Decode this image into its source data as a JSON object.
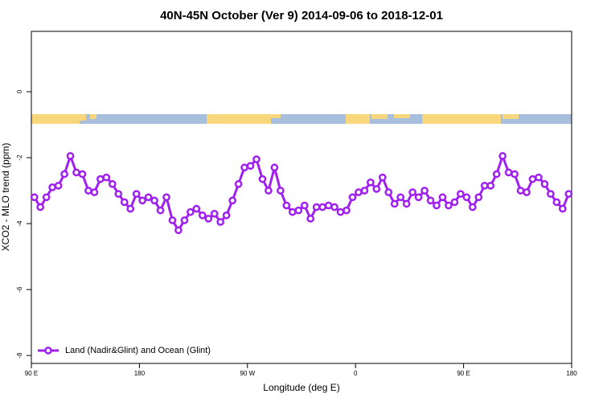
{
  "chart_data": {
    "type": "line",
    "title": "40N-45N October (Ver 9)   2014-09-06 to 2018-12-01",
    "xlabel": "Longitude (deg E)",
    "ylabel": "XCO2 - MLO trend (ppm)",
    "xlim": [
      90,
      540
    ],
    "ylim": [
      -8.24,
      1.83
    ],
    "xticks": [
      {
        "value": 90,
        "label": "90 E"
      },
      180,
      {
        "value": 270,
        "label": "90 W"
      },
      {
        "value": 360,
        "label": "0"
      },
      {
        "value": 450,
        "label": "90 E"
      },
      {
        "value": 540,
        "label": "180"
      }
    ],
    "yticks": [
      0,
      -2,
      -4,
      -6,
      -8
    ],
    "legend": "bottom-left",
    "x": [
      92.5,
      97.5,
      102.5,
      107.5,
      112.5,
      117.5,
      122.5,
      127.5,
      132.5,
      137.5,
      142.5,
      147.5,
      152.5,
      157.5,
      162.5,
      167.5,
      172.5,
      177.5,
      182.5,
      187.5,
      192.5,
      197.5,
      202.5,
      207.5,
      212.5,
      217.5,
      222.5,
      227.5,
      232.5,
      237.5,
      242.5,
      247.5,
      252.5,
      257.5,
      262.5,
      267.5,
      272.5,
      277.5,
      282.5,
      287.5,
      292.5,
      297.5,
      302.5,
      307.5,
      312.5,
      317.5,
      322.5,
      327.5,
      332.5,
      337.5,
      342.5,
      347.5,
      352.5,
      357.5,
      362.5,
      367.5,
      372.5,
      377.5,
      382.5,
      387.5,
      392.5,
      397.5,
      402.5,
      407.5,
      412.5,
      417.5,
      422.5,
      427.5,
      432.5,
      437.5,
      442.5,
      447.5,
      452.5,
      457.5,
      462.5,
      467.5,
      472.5,
      477.5,
      482.5,
      487.5,
      492.5,
      497.5,
      502.5,
      507.5,
      512.5,
      517.5,
      522.5,
      527.5,
      532.5,
      537.5
    ],
    "series": [
      {
        "name": "Land (Nadir&Glint) and Ocean (Glint)",
        "color": "#a020f0",
        "values": [
          -3.2,
          -3.5,
          -3.2,
          -2.9,
          -2.85,
          -2.5,
          -1.95,
          -2.45,
          -2.5,
          -3.0,
          -3.05,
          -2.65,
          -2.6,
          -2.8,
          -3.1,
          -3.35,
          -3.55,
          -3.1,
          -3.3,
          -3.2,
          -3.3,
          -3.6,
          -3.2,
          -3.9,
          -4.2,
          -3.9,
          -3.65,
          -3.55,
          -3.75,
          -3.85,
          -3.7,
          -3.95,
          -3.75,
          -3.3,
          -2.8,
          -2.3,
          -2.25,
          -2.05,
          -2.65,
          -3.0,
          -2.3,
          -3.0,
          -3.45,
          -3.65,
          -3.6,
          -3.45,
          -3.85,
          -3.5,
          -3.5,
          -3.45,
          -3.5,
          -3.65,
          -3.6,
          -3.2,
          -3.05,
          -3.0,
          -2.75,
          -2.95,
          -2.6,
          -3.05,
          -3.4,
          -3.2,
          -3.4,
          -3.05,
          -3.2,
          -3.0,
          -3.3,
          -3.45,
          -3.2,
          -3.45,
          -3.35,
          -3.1,
          -3.2,
          -3.5,
          -3.2,
          -2.85,
          -2.85,
          -2.5,
          -1.95,
          -2.45,
          -2.5,
          -3.0,
          -3.05,
          -2.65,
          -2.6,
          -2.8,
          -3.1,
          -3.35,
          -3.55,
          -3.1
        ]
      }
    ]
  }
}
